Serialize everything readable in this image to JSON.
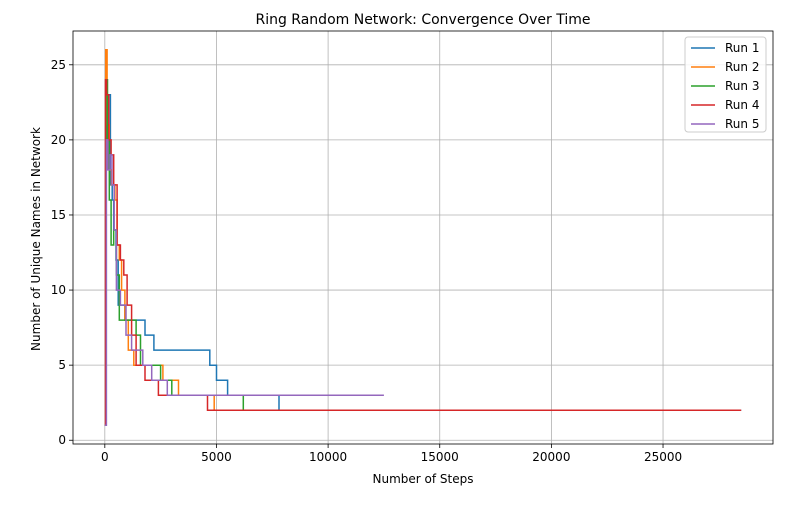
{
  "chart_data": {
    "type": "line",
    "title": "Ring Random Network: Convergence Over Time",
    "xlabel": "Number of Steps",
    "ylabel": "Number of Unique Names in Network",
    "xlim": [
      -1425,
      29925
    ],
    "ylim": [
      -0.25,
      27.25
    ],
    "xticks": [
      0,
      5000,
      10000,
      15000,
      20000,
      25000
    ],
    "yticks": [
      0,
      5,
      10,
      15,
      20,
      25
    ],
    "grid": true,
    "legend_position": "top-right",
    "step_style": "post",
    "series": [
      {
        "name": "Run 1",
        "color": "#1f77b4",
        "x": [
          0,
          60,
          150,
          250,
          330,
          400,
          500,
          600,
          900,
          1500,
          1800,
          2200,
          4700,
          5000,
          5500,
          7800
        ],
        "y": [
          1,
          22,
          23,
          17,
          16,
          14,
          12,
          9,
          8,
          8,
          7,
          6,
          5,
          4,
          3,
          2
        ]
      },
      {
        "name": "Run 2",
        "color": "#ff7f0e",
        "x": [
          0,
          40,
          100,
          200,
          300,
          450,
          550,
          650,
          750,
          900,
          1050,
          1300,
          1800,
          2600,
          3300,
          4900
        ],
        "y": [
          1,
          26,
          21,
          18,
          17,
          16,
          13,
          12,
          10,
          8,
          6,
          5,
          5,
          4,
          3,
          2
        ]
      },
      {
        "name": "Run 3",
        "color": "#2ca02c",
        "x": [
          0,
          50,
          120,
          200,
          280,
          400,
          520,
          650,
          900,
          1400,
          1600,
          2000,
          2500,
          3000,
          6200
        ],
        "y": [
          1,
          24,
          20,
          16,
          13,
          14,
          11,
          8,
          8,
          7,
          5,
          5,
          4,
          3,
          2
        ]
      },
      {
        "name": "Run 4",
        "color": "#d62728",
        "x": [
          0,
          30,
          80,
          180,
          280,
          400,
          550,
          700,
          850,
          1000,
          1200,
          1400,
          1800,
          2400,
          4600
        ],
        "y": [
          1,
          24,
          23,
          20,
          19,
          17,
          13,
          12,
          11,
          9,
          7,
          5,
          4,
          3,
          2
        ]
      },
      {
        "name": "Run 5",
        "color": "#9467bd",
        "x": [
          0,
          70,
          140,
          230,
          320,
          420,
          520,
          700,
          950,
          1200,
          1700,
          2100,
          2800
        ],
        "y": [
          1,
          20,
          18,
          19,
          17,
          14,
          10,
          9,
          7,
          6,
          5,
          4,
          3
        ]
      }
    ],
    "series_end_x": [
      28500,
      19000,
      14000,
      28500,
      12500
    ]
  }
}
